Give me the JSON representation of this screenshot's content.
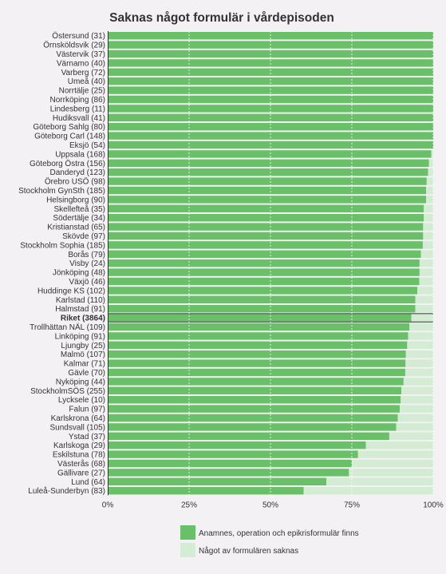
{
  "chart_data": {
    "type": "bar",
    "orientation": "horizontal",
    "stacked": true,
    "title": "Saknas något formulär i vårdepisoden",
    "xlabel": "",
    "ylabel": "",
    "xlim": [
      0,
      100
    ],
    "x_ticks": [
      "0%",
      "25%",
      "50%",
      "75%",
      "100%"
    ],
    "grid": true,
    "legend_position": "bottom",
    "highlight_category": "Riket (3864)",
    "categories": [
      "Östersund (31)",
      "Örnsköldsvik (29)",
      "Västervik (37)",
      "Värnamo (40)",
      "Varberg (72)",
      "Umeå (40)",
      "Norrtälje (25)",
      "Norrköping (86)",
      "Lindesberg (11)",
      "Hudiksvall (41)",
      "Göteborg Sahlg (80)",
      "Göteborg Carl (148)",
      "Eksjö (54)",
      "Uppsala (168)",
      "Göteborg Östra (156)",
      "Danderyd (123)",
      "Örebro USÖ (98)",
      "Stockholm GynSth (185)",
      "Helsingborg (90)",
      "Skellefteå (35)",
      "Södertälje (34)",
      "Kristianstad (65)",
      "Skövde (97)",
      "Stockholm Sophia (185)",
      "Borås (79)",
      "Visby (24)",
      "Jönköping (48)",
      "Växjö (46)",
      "Huddinge KS (102)",
      "Karlstad (110)",
      "Halmstad (91)",
      "Riket (3864)",
      "Trollhättan NÄL (109)",
      "Linköping (91)",
      "Ljungby (25)",
      "Malmö (107)",
      "Kalmar (71)",
      "Gävle (70)",
      "Nyköping (44)",
      "StockholmSÖS (255)",
      "Lycksele (10)",
      "Falun (97)",
      "Karlskrona (64)",
      "Sundsvall (105)",
      "Ystad (37)",
      "Karlskoga (29)",
      "Eskilstuna (78)",
      "Västerås (68)",
      "Gällivare (27)",
      "Lund (64)",
      "Luleå-Sunderbyn (83)"
    ],
    "series": [
      {
        "name": "Anamnes, operation och epikrisformulär  finns",
        "color": "#6abf69",
        "values": [
          100,
          100,
          100,
          100,
          100,
          100,
          100,
          100,
          100,
          100,
          100,
          100,
          100,
          99.4,
          98.7,
          98.4,
          98.0,
          97.8,
          97.8,
          97.1,
          97.1,
          96.9,
          96.9,
          96.8,
          96.2,
          95.8,
          95.8,
          95.7,
          95.1,
          94.5,
          94.5,
          93.3,
          92.7,
          92.3,
          92.0,
          91.6,
          91.5,
          91.4,
          90.9,
          90.2,
          90.0,
          89.7,
          89.1,
          88.6,
          86.5,
          79.3,
          76.9,
          75.0,
          74.1,
          67.2,
          60.2
        ]
      },
      {
        "name": "Något av formulären saknas",
        "color": "#d3ecd3",
        "values": [
          0,
          0,
          0,
          0,
          0,
          0,
          0,
          0,
          0,
          0,
          0,
          0,
          0,
          0.6,
          1.3,
          1.6,
          2.0,
          2.2,
          2.2,
          2.9,
          2.9,
          3.1,
          3.1,
          3.2,
          3.8,
          4.2,
          4.2,
          4.3,
          4.9,
          5.5,
          5.5,
          6.7,
          7.3,
          7.7,
          8.0,
          8.4,
          8.5,
          8.6,
          9.1,
          9.8,
          10.0,
          10.3,
          10.9,
          11.4,
          13.5,
          20.7,
          23.1,
          25.0,
          25.9,
          32.8,
          39.8
        ]
      }
    ]
  }
}
